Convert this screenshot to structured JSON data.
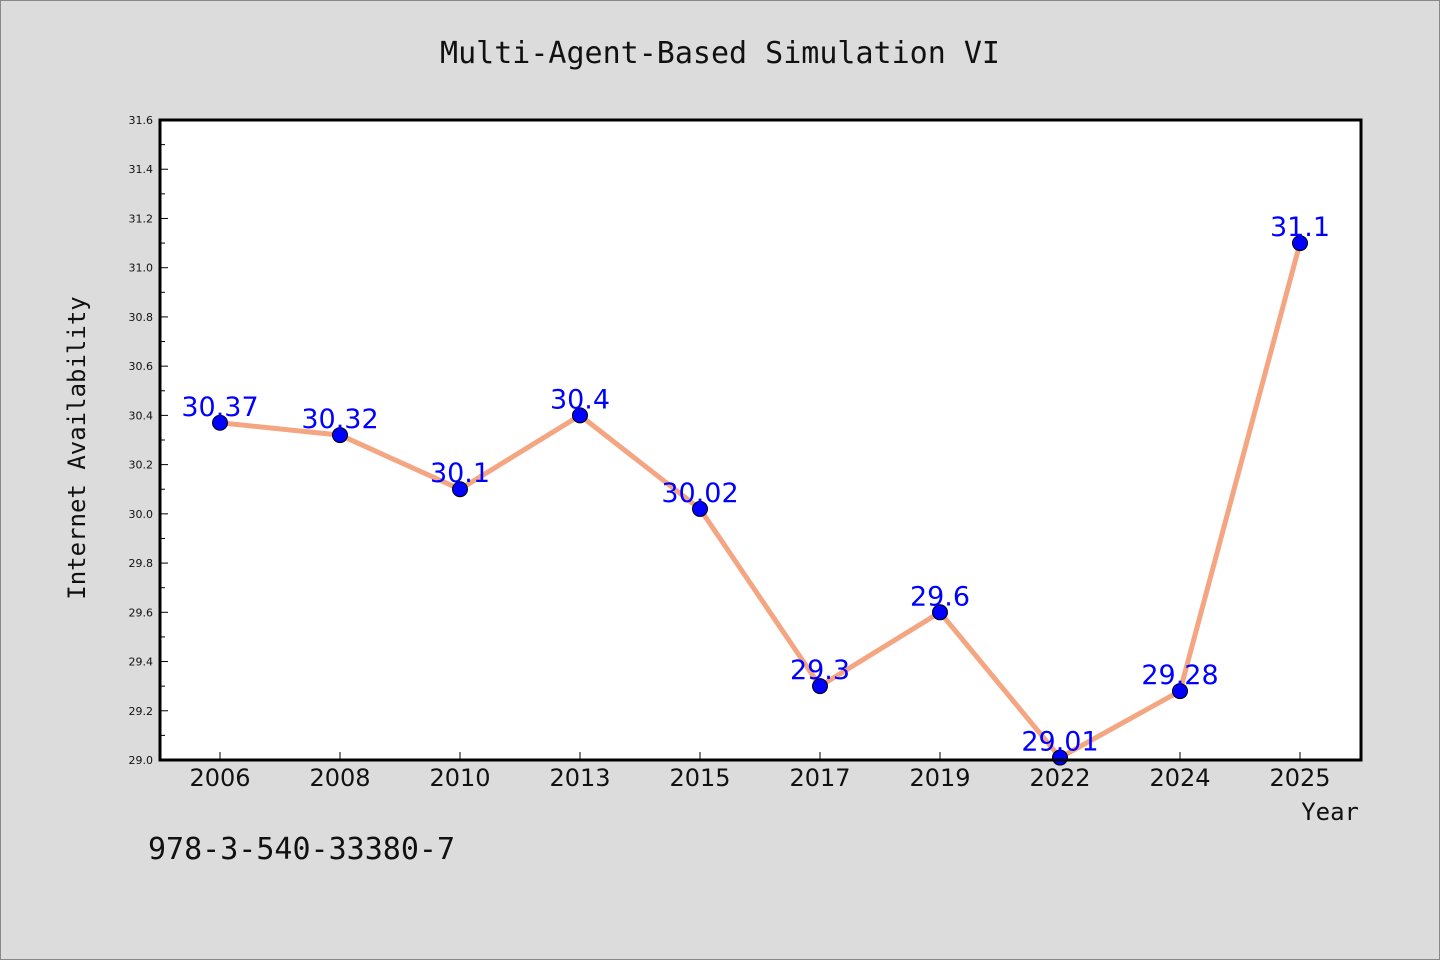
{
  "chart_data": {
    "type": "line",
    "title": "Multi-Agent-Based Simulation VI",
    "xlabel": "Year",
    "ylabel": "Internet Availability",
    "categories": [
      "2006",
      "2008",
      "2010",
      "2013",
      "2015",
      "2017",
      "2019",
      "2022",
      "2024",
      "2025"
    ],
    "values": [
      30.37,
      30.32,
      30.1,
      30.4,
      30.02,
      29.3,
      29.6,
      29.01,
      29.28,
      31.1
    ],
    "data_labels": [
      "30.37",
      "30.32",
      "30.1",
      "30.4",
      "30.02",
      "29.3",
      "29.6",
      "29.01",
      "29.28",
      "31.1"
    ],
    "ylim": [
      29.0,
      31.6
    ],
    "yticks": [
      "29.0",
      "29.2",
      "29.4",
      "29.6",
      "29.8",
      "30.0",
      "30.2",
      "30.4",
      "30.6",
      "30.8",
      "31.0",
      "31.2",
      "31.4",
      "31.6"
    ],
    "grid": false,
    "line_color": "#f4a582",
    "marker_color": "#0000ff",
    "label_color": "#0000ff",
    "background": "#dcdcdc",
    "plot_background": "#ffffff"
  },
  "footer": {
    "isbn": "978-3-540-33380-7"
  }
}
